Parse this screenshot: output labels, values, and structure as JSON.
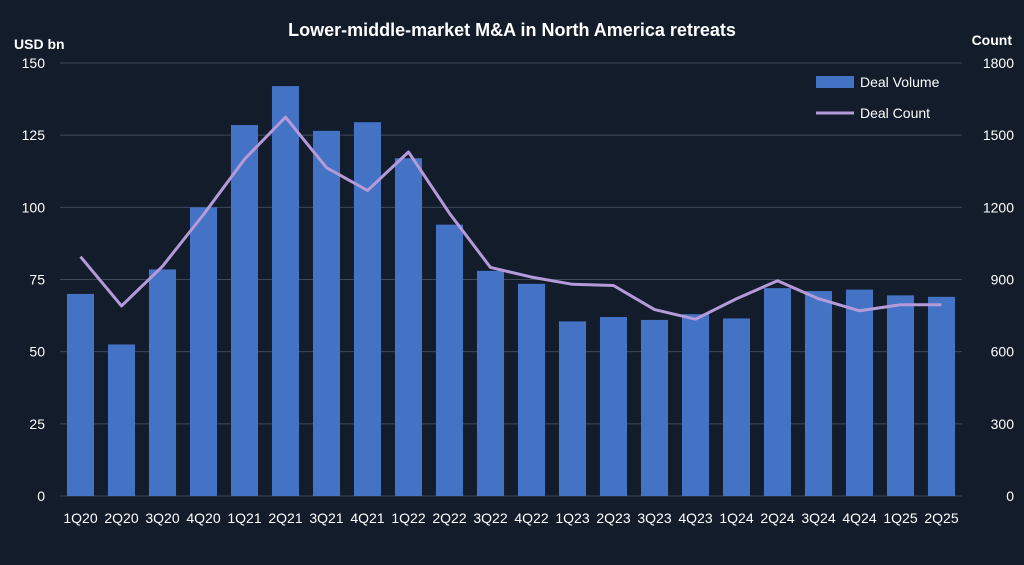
{
  "colors": {
    "background": "#131c2b",
    "bar": "#4472c4",
    "line": "#b49ad9",
    "grid": "#3e4859",
    "text": "#ffffff"
  },
  "chart_data": {
    "type": "bar",
    "title": "Lower-middle-market M&A in North America retreats",
    "ylabel_left": "USD bn",
    "ylabel_right": "Count",
    "grid": true,
    "legend_position": "top-right",
    "ylim_left": [
      0,
      150
    ],
    "ylim_right": [
      0,
      1800
    ],
    "yticks_left": [
      0,
      25,
      50,
      75,
      100,
      125,
      150
    ],
    "yticks_right": [
      0,
      300,
      600,
      900,
      1200,
      1500,
      1800
    ],
    "categories": [
      "1Q20",
      "2Q20",
      "3Q20",
      "4Q20",
      "1Q21",
      "2Q21",
      "3Q21",
      "4Q21",
      "1Q22",
      "2Q22",
      "3Q22",
      "4Q22",
      "1Q23",
      "2Q23",
      "3Q23",
      "4Q23",
      "1Q24",
      "2Q24",
      "3Q24",
      "4Q24",
      "1Q25",
      "2Q25"
    ],
    "series": [
      {
        "name": "Deal Volume",
        "type": "bar",
        "axis": "left",
        "values": [
          70,
          52.5,
          78.5,
          100,
          128.5,
          142,
          126.5,
          129.5,
          117,
          94,
          78,
          73.5,
          60.5,
          62,
          61,
          63,
          61.5,
          72,
          71,
          71.5,
          69.5,
          69
        ]
      },
      {
        "name": "Deal Count",
        "type": "line",
        "axis": "right",
        "values": [
          995,
          790,
          955,
          1170,
          1400,
          1575,
          1365,
          1270,
          1430,
          1175,
          950,
          910,
          880,
          875,
          775,
          735,
          820,
          895,
          820,
          770,
          795,
          795
        ]
      }
    ]
  }
}
